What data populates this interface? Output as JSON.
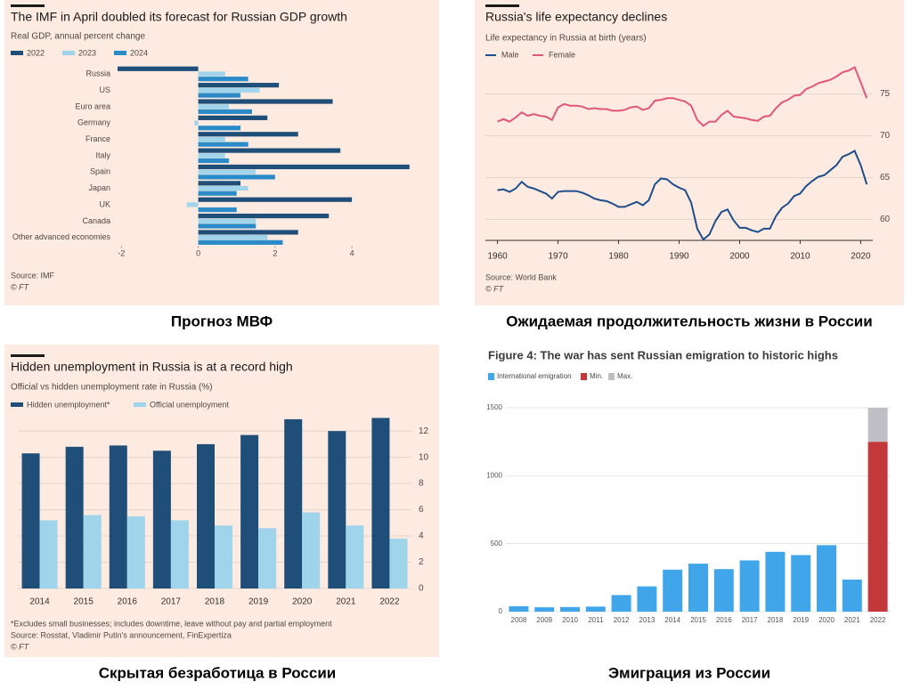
{
  "chart_data": [
    {
      "type": "hbar",
      "title": "The IMF in April doubled its forecast for Russian GDP growth",
      "subtitle": "Real GDP, annual percent change",
      "categories": [
        "Russia",
        "US",
        "Euro area",
        "Germany",
        "France",
        "Italy",
        "Spain",
        "Japan",
        "UK",
        "Canada",
        "Other advanced economies"
      ],
      "series": [
        {
          "name": "2022",
          "color": "#1f4e79",
          "values": [
            -2.1,
            2.1,
            3.5,
            1.8,
            2.6,
            3.7,
            5.5,
            1.1,
            4.0,
            3.4,
            2.6
          ]
        },
        {
          "name": "2023",
          "color": "#9fd4ea",
          "values": [
            0.7,
            1.6,
            0.8,
            -0.1,
            0.7,
            0.7,
            1.5,
            1.3,
            -0.3,
            1.5,
            1.8
          ]
        },
        {
          "name": "2024",
          "color": "#2b8bc8",
          "values": [
            1.3,
            1.1,
            1.4,
            1.1,
            1.3,
            0.8,
            2.0,
            1.0,
            1.0,
            1.5,
            2.2
          ]
        }
      ],
      "xlim": [
        -2.1,
        6.2
      ],
      "xticks": [
        -2,
        0,
        2,
        4
      ],
      "source": "Source: IMF",
      "credit": "© FT",
      "caption": "Прогноз МВФ"
    },
    {
      "type": "line",
      "title": "Russia's life expectancy declines",
      "subtitle": "Life expectancy in Russia at birth (years)",
      "x": [
        1960,
        1961,
        1962,
        1963,
        1964,
        1965,
        1966,
        1967,
        1968,
        1969,
        1970,
        1971,
        1972,
        1973,
        1974,
        1975,
        1976,
        1977,
        1978,
        1979,
        1980,
        1981,
        1982,
        1983,
        1984,
        1985,
        1986,
        1987,
        1988,
        1989,
        1990,
        1991,
        1992,
        1993,
        1994,
        1995,
        1996,
        1997,
        1998,
        1999,
        2000,
        2001,
        2002,
        2003,
        2004,
        2005,
        2006,
        2007,
        2008,
        2009,
        2010,
        2011,
        2012,
        2013,
        2014,
        2015,
        2016,
        2017,
        2018,
        2019,
        2020,
        2021
      ],
      "series": [
        {
          "name": "Male",
          "color": "#1f4e8c",
          "values": [
            63.5,
            63.6,
            63.3,
            63.7,
            64.5,
            63.9,
            63.7,
            63.4,
            63.1,
            62.5,
            63.3,
            63.4,
            63.4,
            63.4,
            63.2,
            62.9,
            62.5,
            62.3,
            62.2,
            61.9,
            61.5,
            61.5,
            61.8,
            62.1,
            61.7,
            62.3,
            64.2,
            64.9,
            64.8,
            64.2,
            63.8,
            63.5,
            62.0,
            58.9,
            57.6,
            58.2,
            59.8,
            60.9,
            61.2,
            59.9,
            59.0,
            59.0,
            58.7,
            58.5,
            58.9,
            58.9,
            60.4,
            61.4,
            61.9,
            62.8,
            63.1,
            64.0,
            64.6,
            65.1,
            65.3,
            65.9,
            66.5,
            67.5,
            67.8,
            68.2,
            66.5,
            64.2
          ]
        },
        {
          "name": "Female",
          "color": "#e0577a",
          "values": [
            71.7,
            72.0,
            71.7,
            72.2,
            72.8,
            72.4,
            72.6,
            72.4,
            72.3,
            71.9,
            73.4,
            73.8,
            73.6,
            73.6,
            73.5,
            73.2,
            73.3,
            73.2,
            73.2,
            73.0,
            73.0,
            73.1,
            73.4,
            73.5,
            73.1,
            73.3,
            74.2,
            74.3,
            74.5,
            74.5,
            74.3,
            74.1,
            73.6,
            71.9,
            71.2,
            71.7,
            71.7,
            72.5,
            73.0,
            72.3,
            72.2,
            72.1,
            71.9,
            71.8,
            72.3,
            72.4,
            73.3,
            74.0,
            74.3,
            74.8,
            74.9,
            75.6,
            75.9,
            76.3,
            76.5,
            76.7,
            77.1,
            77.6,
            77.8,
            78.2,
            76.4,
            74.5
          ]
        }
      ],
      "xlim": [
        1958,
        2022
      ],
      "xticks": [
        1960,
        1970,
        1980,
        1990,
        2000,
        2010,
        2020
      ],
      "ylim": [
        57.5,
        79
      ],
      "yticks": [
        60,
        65,
        70,
        75
      ],
      "grid": true,
      "source": "Source: World Bank",
      "credit": "© FT",
      "caption": "Ожидаемая продолжительность жизни в России"
    },
    {
      "type": "bar",
      "title": "Hidden unemployment in Russia is at a record high",
      "subtitle": "Official vs hidden unemployment rate in Russia (%)",
      "categories": [
        "2014",
        "2015",
        "2016",
        "2017",
        "2018",
        "2019",
        "2020",
        "2021",
        "2022"
      ],
      "series": [
        {
          "name": "Hidden unemployment*",
          "color": "#1f4e79",
          "values": [
            10.3,
            10.8,
            10.9,
            10.5,
            11.0,
            11.7,
            12.9,
            12.0,
            13.0
          ]
        },
        {
          "name": "Official unemployment",
          "color": "#9fd4ea",
          "values": [
            5.2,
            5.6,
            5.5,
            5.2,
            4.8,
            4.6,
            5.8,
            4.8,
            3.8
          ]
        }
      ],
      "ylim": [
        0,
        13.3
      ],
      "yticks": [
        0,
        2,
        4,
        6,
        8,
        10,
        12
      ],
      "grid": true,
      "note": "*Excludes small businesses; includes downtime, leave without pay and partial employment",
      "source": "Source: Rosstat, Vladimir Putin's announcement, FinExpertiza",
      "credit": "© FT",
      "caption": "Скрытая безработица в России"
    },
    {
      "type": "stacked_bar",
      "title": "Figure 4: The war has sent Russian emigration to historic highs",
      "categories": [
        "2008",
        "2009",
        "2010",
        "2011",
        "2012",
        "2013",
        "2014",
        "2015",
        "2016",
        "2017",
        "2018",
        "2019",
        "2020",
        "2021",
        "2022"
      ],
      "series": [
        {
          "name": "International emigration",
          "color": "#41a6e9",
          "values": [
            40,
            32,
            34,
            37,
            122,
            186,
            309,
            353,
            313,
            377,
            440,
            416,
            489,
            236,
            null
          ]
        },
        {
          "name": "Min.",
          "color": "#c3393b",
          "values": [
            null,
            null,
            null,
            null,
            null,
            null,
            null,
            null,
            null,
            null,
            null,
            null,
            null,
            null,
            1250
          ]
        },
        {
          "name": "Max.",
          "color": "#bfbfc5",
          "values": [
            null,
            null,
            null,
            null,
            null,
            null,
            null,
            null,
            null,
            null,
            null,
            null,
            null,
            null,
            250
          ]
        }
      ],
      "ylim": [
        0,
        1500
      ],
      "yticks": [
        0,
        500,
        1000,
        1500
      ],
      "grid": true,
      "caption": "Эмиграция из России"
    }
  ]
}
